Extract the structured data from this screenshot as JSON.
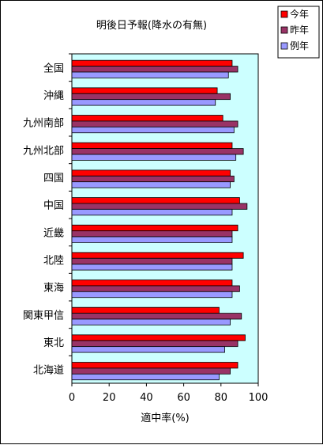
{
  "chart_data": {
    "type": "bar",
    "orientation": "horizontal",
    "title": "明後日予報(降水の有無)",
    "xlabel": "適中率(%)",
    "ylabel": "",
    "xlim": [
      0,
      100
    ],
    "xticks": [
      0,
      20,
      40,
      60,
      80,
      100
    ],
    "grid": false,
    "legend_position": "top-right",
    "plot_background": "#ccffff",
    "categories": [
      "全国",
      "沖縄",
      "九州南部",
      "九州北部",
      "四国",
      "中国",
      "近畿",
      "北陸",
      "東海",
      "関東甲信",
      "東北",
      "北海道"
    ],
    "series": [
      {
        "name": "今年",
        "color": "#ff0000",
        "values": [
          86,
          78,
          81,
          86,
          85,
          90,
          89,
          92,
          86,
          79,
          93,
          89
        ]
      },
      {
        "name": "昨年",
        "color": "#993366",
        "values": [
          89,
          85,
          89,
          92,
          87,
          94,
          86,
          86,
          90,
          91,
          89,
          85
        ]
      },
      {
        "name": "例年",
        "color": "#9999ff",
        "values": [
          84,
          77,
          87,
          88,
          85,
          86,
          86,
          86,
          86,
          85,
          82,
          79
        ]
      }
    ]
  }
}
